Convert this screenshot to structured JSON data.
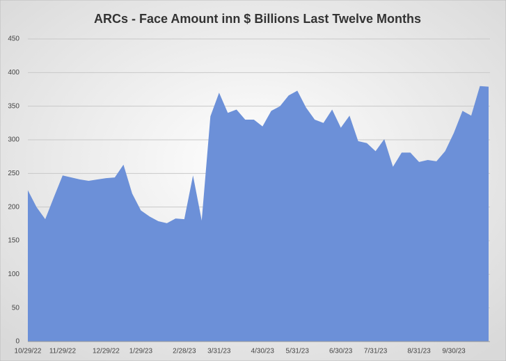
{
  "chart_data": {
    "type": "area",
    "title": "ARCs - Face Amount inn $ Billions Last Twelve Months",
    "categories": [
      "10/29/22",
      null,
      null,
      null,
      "11/29/22",
      null,
      null,
      null,
      null,
      "12/29/22",
      null,
      null,
      null,
      "1/29/23",
      null,
      null,
      null,
      null,
      "2/28/23",
      null,
      null,
      null,
      "3/31/23",
      null,
      null,
      null,
      null,
      "4/30/23",
      null,
      null,
      null,
      "5/31/23",
      null,
      null,
      null,
      null,
      "6/30/23",
      null,
      null,
      null,
      "7/31/23",
      null,
      null,
      null,
      null,
      "8/31/23",
      null,
      null,
      null,
      "9/30/23",
      null,
      null,
      null,
      null
    ],
    "values": [
      225,
      200,
      182,
      215,
      247,
      244,
      241,
      239,
      241,
      243,
      244,
      263,
      220,
      195,
      186,
      179,
      176,
      183,
      182,
      247,
      180,
      335,
      370,
      340,
      345,
      330,
      330,
      320,
      343,
      350,
      366,
      373,
      348,
      330,
      325,
      345,
      318,
      336,
      298,
      295,
      283,
      301,
      260,
      281,
      281,
      267,
      270,
      268,
      283,
      310,
      343,
      336,
      380,
      379
    ],
    "color": "#6c90d8",
    "ylim": [
      0,
      450
    ],
    "yticks": [
      0,
      50,
      100,
      150,
      200,
      250,
      300,
      350,
      400,
      450
    ],
    "grid": true
  }
}
